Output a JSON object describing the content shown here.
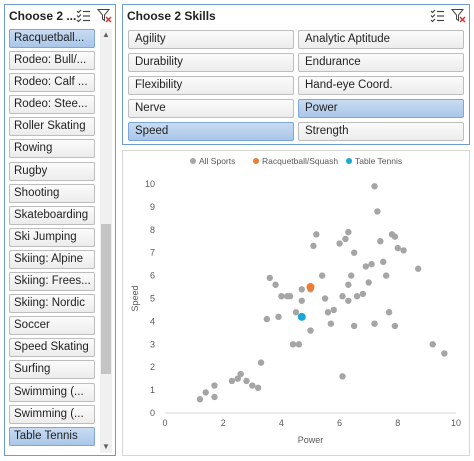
{
  "left_slicer": {
    "title": "Choose 2 ...",
    "items": [
      {
        "label": "Racquetball...",
        "selected": true
      },
      {
        "label": "Rodeo: Bull/...",
        "selected": false
      },
      {
        "label": "Rodeo: Calf ...",
        "selected": false
      },
      {
        "label": "Rodeo: Stee...",
        "selected": false
      },
      {
        "label": "Roller Skating",
        "selected": false
      },
      {
        "label": "Rowing",
        "selected": false
      },
      {
        "label": "Rugby",
        "selected": false
      },
      {
        "label": "Shooting",
        "selected": false
      },
      {
        "label": "Skateboarding",
        "selected": false
      },
      {
        "label": "Ski Jumping",
        "selected": false
      },
      {
        "label": "Skiing: Alpine",
        "selected": false
      },
      {
        "label": "Skiing: Frees...",
        "selected": false
      },
      {
        "label": "Skiing: Nordic",
        "selected": false
      },
      {
        "label": "Soccer",
        "selected": false
      },
      {
        "label": "Speed Skating",
        "selected": false
      },
      {
        "label": "Surfing",
        "selected": false
      },
      {
        "label": "Swimming (...",
        "selected": false
      },
      {
        "label": "Swimming (...",
        "selected": false
      },
      {
        "label": "Table Tennis",
        "selected": true
      }
    ]
  },
  "skills_slicer": {
    "title": "Choose 2 Skills",
    "items": [
      {
        "label": "Agility",
        "selected": false
      },
      {
        "label": "Analytic Aptitude",
        "selected": false
      },
      {
        "label": "Durability",
        "selected": false
      },
      {
        "label": "Endurance",
        "selected": false
      },
      {
        "label": "Flexibility",
        "selected": false
      },
      {
        "label": "Hand-eye Coord.",
        "selected": false
      },
      {
        "label": "Nerve",
        "selected": false
      },
      {
        "label": "Power",
        "selected": true
      },
      {
        "label": "Speed",
        "selected": true
      },
      {
        "label": "Strength",
        "selected": false
      }
    ]
  },
  "colors": {
    "accent_border": "#6d9dce",
    "all_sports": "#a5a5a5",
    "racquetball": "#ed7d31",
    "table_tennis": "#19a8d8"
  },
  "chart_data": {
    "type": "scatter",
    "xlabel": "Power",
    "ylabel": "Speed",
    "xlim": [
      0,
      10
    ],
    "ylim": [
      0,
      10
    ],
    "x_ticks": [
      "0",
      "2",
      "4",
      "6",
      "8",
      "10"
    ],
    "y_ticks": [
      "0",
      "1",
      "2",
      "3",
      "4",
      "5",
      "6",
      "7",
      "8",
      "9",
      "10"
    ],
    "legend_position": "top",
    "series": [
      {
        "name": "All Sports",
        "color": "#a5a5a5",
        "points": [
          [
            1.2,
            0.6
          ],
          [
            1.4,
            0.9
          ],
          [
            1.7,
            0.7
          ],
          [
            1.7,
            1.2
          ],
          [
            2.3,
            1.4
          ],
          [
            2.5,
            1.5
          ],
          [
            2.6,
            1.7
          ],
          [
            2.8,
            1.4
          ],
          [
            3.0,
            1.2
          ],
          [
            3.2,
            1.1
          ],
          [
            3.3,
            2.2
          ],
          [
            3.5,
            4.1
          ],
          [
            3.6,
            5.9
          ],
          [
            3.9,
            4.2
          ],
          [
            3.8,
            5.6
          ],
          [
            4.0,
            5.1
          ],
          [
            4.2,
            5.1
          ],
          [
            4.3,
            5.1
          ],
          [
            4.4,
            3.0
          ],
          [
            4.5,
            4.4
          ],
          [
            4.6,
            3.0
          ],
          [
            4.7,
            5.4
          ],
          [
            4.7,
            4.9
          ],
          [
            5.0,
            5.4
          ],
          [
            5.1,
            7.3
          ],
          [
            5.0,
            3.6
          ],
          [
            5.2,
            7.8
          ],
          [
            5.4,
            6.0
          ],
          [
            5.5,
            5.0
          ],
          [
            5.6,
            4.4
          ],
          [
            5.7,
            3.9
          ],
          [
            5.8,
            4.5
          ],
          [
            6.0,
            7.4
          ],
          [
            6.1,
            5.1
          ],
          [
            6.2,
            7.6
          ],
          [
            6.3,
            7.9
          ],
          [
            6.3,
            5.6
          ],
          [
            6.3,
            4.9
          ],
          [
            6.4,
            6.0
          ],
          [
            6.5,
            7.0
          ],
          [
            6.6,
            5.1
          ],
          [
            6.8,
            5.2
          ],
          [
            6.9,
            6.4
          ],
          [
            7.0,
            5.7
          ],
          [
            7.1,
            6.5
          ],
          [
            7.2,
            3.9
          ],
          [
            7.3,
            8.8
          ],
          [
            7.4,
            7.5
          ],
          [
            7.5,
            6.6
          ],
          [
            7.6,
            6.0
          ],
          [
            7.7,
            4.4
          ],
          [
            7.8,
            7.8
          ],
          [
            7.9,
            7.7
          ],
          [
            8.0,
            7.2
          ],
          [
            8.2,
            7.1
          ],
          [
            8.7,
            6.3
          ],
          [
            9.2,
            3.0
          ],
          [
            9.6,
            2.6
          ],
          [
            7.2,
            9.9
          ],
          [
            7.9,
            3.8
          ],
          [
            6.1,
            1.6
          ],
          [
            6.5,
            3.8
          ]
        ]
      },
      {
        "name": "Racquetball/Squash",
        "color": "#ed7d31",
        "points": [
          [
            5.0,
            5.5
          ]
        ]
      },
      {
        "name": "Table Tennis",
        "color": "#19a8d8",
        "points": [
          [
            4.7,
            4.2
          ]
        ]
      }
    ]
  }
}
